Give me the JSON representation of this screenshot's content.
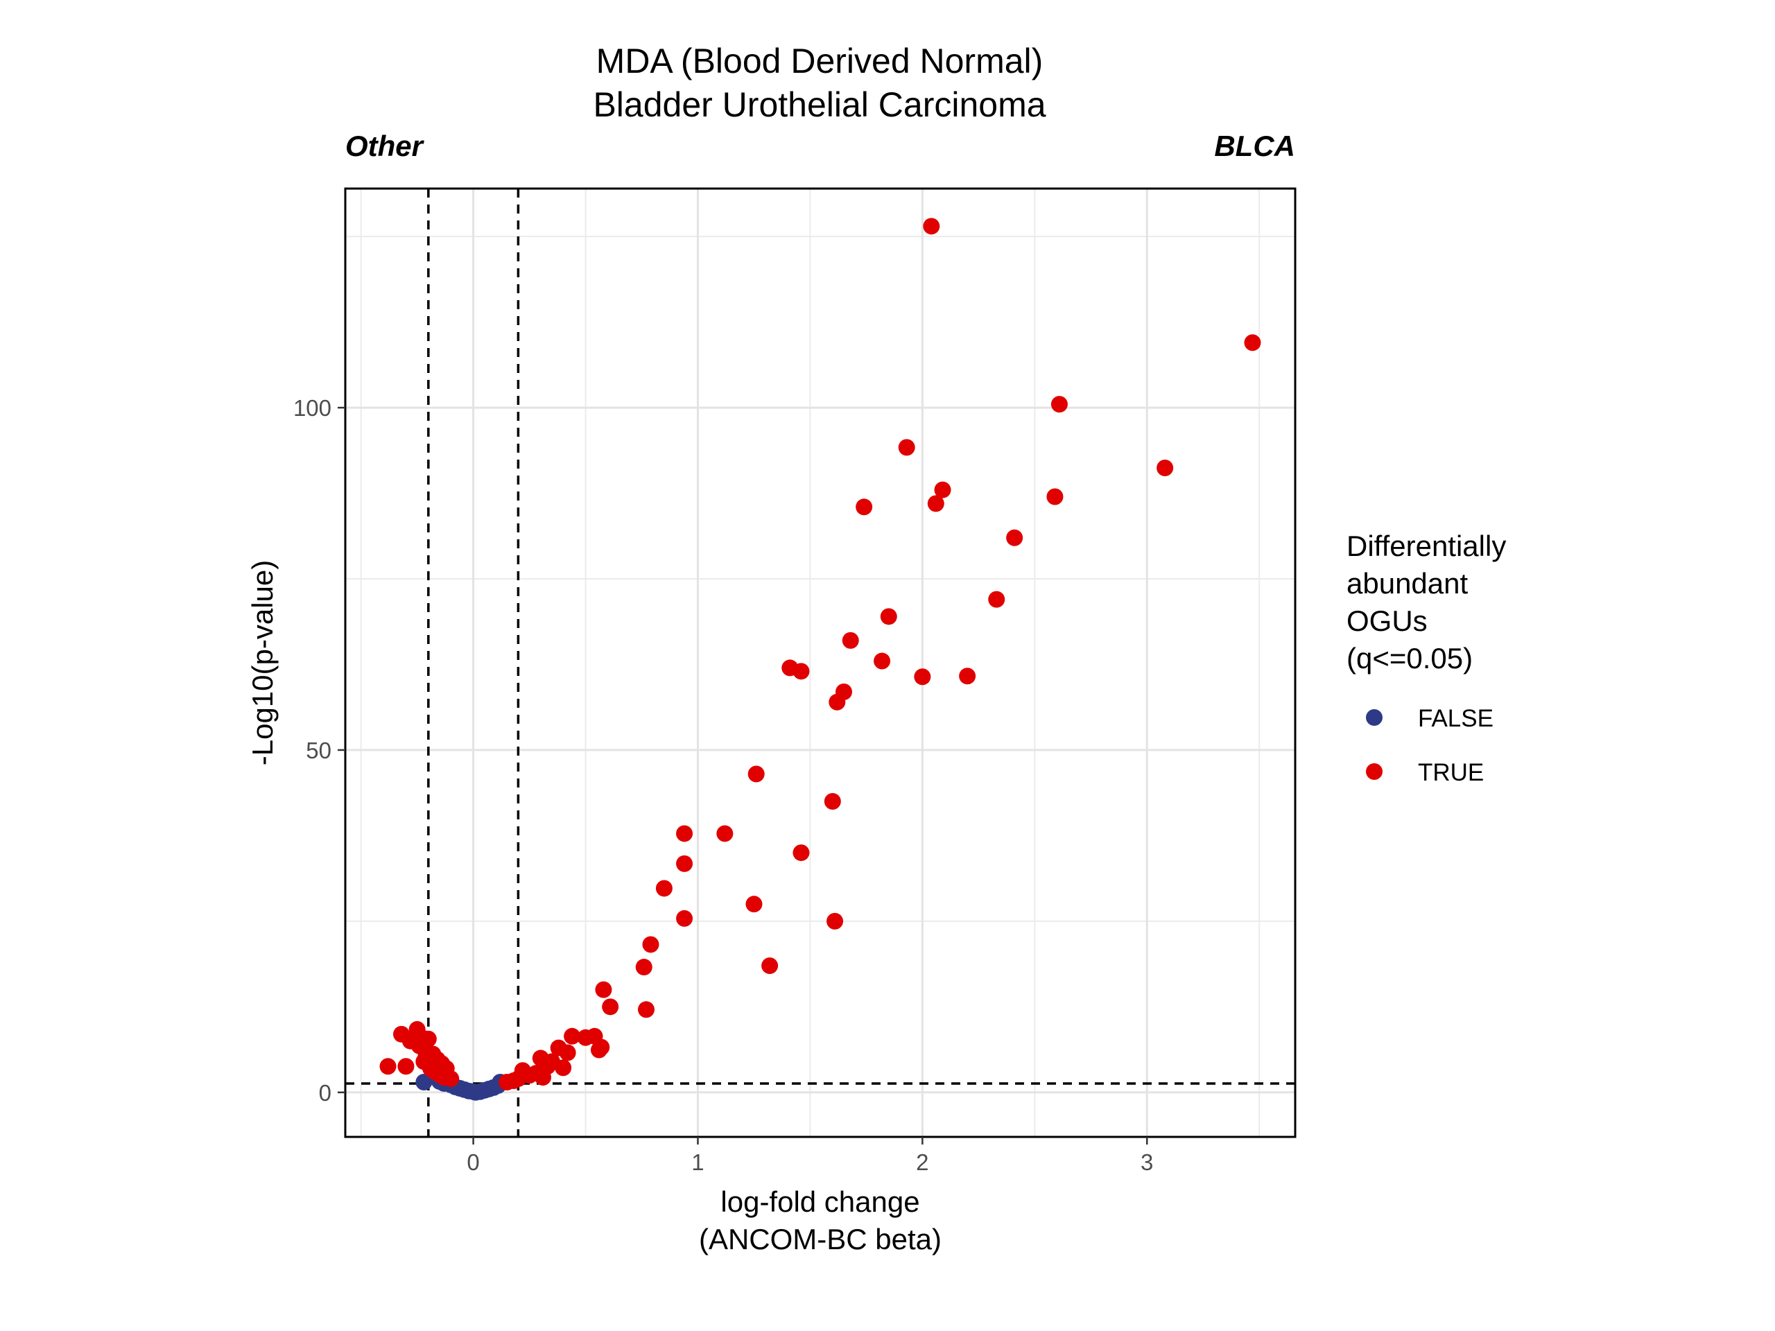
{
  "chart_data": {
    "type": "scatter",
    "title_lines": [
      "MDA (Blood Derived Normal)",
      "Bladder Urothelial Carcinoma"
    ],
    "left_label": "Other",
    "right_label": "BLCA",
    "xlabel_lines": [
      "log-fold change",
      "(ANCOM-BC beta)"
    ],
    "ylabel": "-Log10(p-value)",
    "xlim": [
      -0.57,
      3.66
    ],
    "ylim": [
      -6.5,
      132
    ],
    "x_ticks": [
      0,
      1,
      2,
      3
    ],
    "y_ticks": [
      0,
      50,
      100
    ],
    "grid": true,
    "vlines": [
      -0.2,
      0.2
    ],
    "hline": 1.3,
    "legend": {
      "position": "right",
      "title_lines": [
        "Differentially",
        "abundant",
        "OGUs",
        "(q<=0.05)"
      ],
      "entries": [
        {
          "label": "FALSE",
          "color": "#2e3a87"
        },
        {
          "label": "TRUE",
          "color": "#e00000"
        }
      ]
    },
    "series": [
      {
        "name": "FALSE",
        "color": "#2e3a87",
        "x": [
          -0.22,
          -0.15,
          -0.13,
          -0.1,
          -0.08,
          -0.06,
          -0.04,
          -0.02,
          0.0,
          0.01,
          0.03,
          0.05,
          0.07,
          0.09,
          0.11,
          0.12
        ],
        "y": [
          1.5,
          1.6,
          1.3,
          1.1,
          0.8,
          0.6,
          0.4,
          0.2,
          0.1,
          0.0,
          0.1,
          0.3,
          0.5,
          0.7,
          1.0,
          1.5
        ]
      },
      {
        "name": "TRUE",
        "color": "#e00000",
        "x": [
          -0.38,
          -0.32,
          -0.3,
          -0.28,
          -0.25,
          -0.24,
          -0.23,
          -0.22,
          -0.21,
          -0.2,
          -0.19,
          -0.18,
          -0.17,
          -0.16,
          -0.15,
          -0.14,
          -0.13,
          -0.12,
          -0.1,
          0.15,
          0.18,
          0.2,
          0.22,
          0.25,
          0.28,
          0.3,
          0.31,
          0.33,
          0.35,
          0.38,
          0.4,
          0.42,
          0.44,
          0.5,
          0.54,
          0.56,
          0.57,
          0.58,
          0.61,
          0.76,
          0.77,
          0.79,
          0.85,
          0.94,
          0.94,
          0.94,
          1.12,
          1.25,
          1.26,
          1.32,
          1.41,
          1.46,
          1.46,
          1.6,
          1.61,
          1.62,
          1.65,
          1.68,
          1.74,
          1.82,
          1.85,
          1.93,
          2.0,
          2.04,
          2.06,
          2.09,
          2.2,
          2.33,
          2.41,
          2.59,
          2.61,
          3.08,
          3.47
        ],
        "y": [
          3.8,
          8.5,
          3.8,
          7.5,
          9.2,
          6.8,
          8.0,
          4.5,
          5.5,
          7.8,
          3.5,
          5.6,
          3.0,
          4.8,
          2.6,
          4.2,
          2.2,
          3.5,
          2.0,
          1.5,
          1.7,
          2.0,
          3.2,
          2.5,
          2.8,
          5.0,
          2.2,
          3.8,
          4.5,
          6.5,
          3.6,
          5.8,
          8.2,
          8.0,
          8.2,
          6.2,
          6.6,
          15.0,
          12.5,
          18.3,
          12.1,
          21.6,
          29.8,
          37.8,
          33.4,
          25.4,
          37.8,
          27.5,
          46.5,
          18.5,
          62.0,
          35.0,
          61.5,
          42.5,
          25.0,
          57.0,
          58.5,
          66.0,
          85.5,
          63.0,
          69.5,
          94.2,
          60.7,
          126.5,
          86.0,
          88.0,
          60.8,
          72.0,
          81.0,
          87.0,
          100.5,
          91.2,
          109.5
        ]
      }
    ]
  }
}
